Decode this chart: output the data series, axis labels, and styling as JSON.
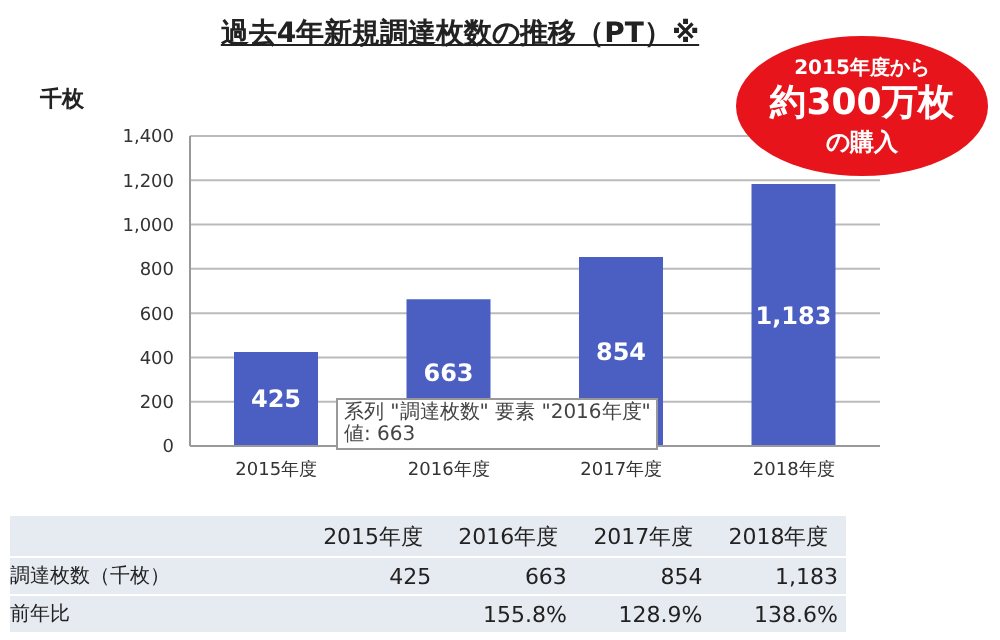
{
  "chart_data": {
    "type": "bar",
    "title": "過去4年新規調達枚数の推移（PT）※",
    "ylabel": "千枚",
    "categories": [
      "2015年度",
      "2016年度",
      "2017年度",
      "2018年度"
    ],
    "values": [
      425,
      663,
      854,
      1183
    ],
    "color": "#4a5fc1",
    "ylim": [
      0,
      1400
    ],
    "yticks": [
      {
        "value": 0,
        "label": "0"
      },
      {
        "value": 200,
        "label": "200"
      },
      {
        "value": 400,
        "label": "400"
      },
      {
        "value": 600,
        "label": "600"
      },
      {
        "value": 800,
        "label": "800"
      },
      {
        "value": 1000,
        "label": "1,000"
      },
      {
        "value": 1200,
        "label": "1,200"
      },
      {
        "value": 1400,
        "label": "1,400"
      }
    ],
    "grid": "y",
    "value_labels": [
      "425",
      "663",
      "854",
      "1,183"
    ],
    "legend": false,
    "annotations": [
      "2015年度から",
      "約300万枚",
      "の購入",
      "系列 \"調達枚数\" 要素 \"2016年度\"",
      "値: 663",
      "調達枚数（千枚）",
      "前年比",
      "155.8%",
      "128.9%",
      "138.6%"
    ]
  }
}
